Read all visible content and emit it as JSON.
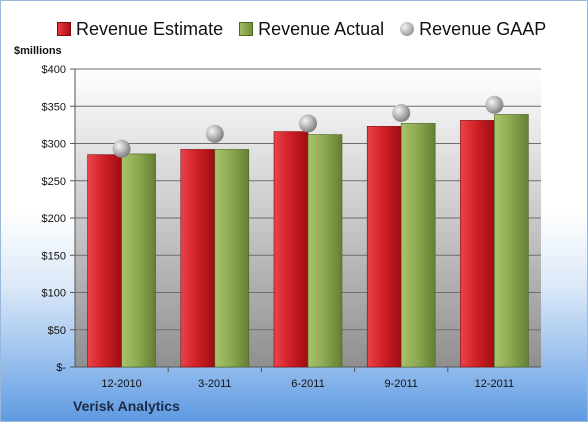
{
  "legend": {
    "estimate": "Revenue Estimate",
    "actual": "Revenue Actual",
    "gaap": "Revenue GAAP"
  },
  "unit_label": "$millions",
  "company": "Verisk Analytics",
  "colors": {
    "estimate": "#cc1f26",
    "actual": "#8aa84e",
    "gaap": "#b5b5b5"
  },
  "chart_data": {
    "type": "bar",
    "categories": [
      "12-2010",
      "3-2011",
      "6-2011",
      "9-2011",
      "12-2011"
    ],
    "series": [
      {
        "name": "Revenue Estimate",
        "kind": "bar",
        "values": [
          285,
          292,
          316,
          323,
          331
        ]
      },
      {
        "name": "Revenue Actual",
        "kind": "bar",
        "values": [
          286,
          292,
          312,
          327,
          339
        ]
      },
      {
        "name": "Revenue GAAP",
        "kind": "marker",
        "values": [
          293,
          313,
          327,
          341,
          352
        ]
      }
    ],
    "ylabel": "$millions",
    "ylim": [
      0,
      400
    ],
    "yticks": [
      0,
      50,
      100,
      150,
      200,
      250,
      300,
      350,
      400
    ],
    "ytick_labels": [
      "$-",
      "$50",
      "$100",
      "$150",
      "$200",
      "$250",
      "$300",
      "$350",
      "$400"
    ],
    "grid": true,
    "legend_position": "top"
  }
}
